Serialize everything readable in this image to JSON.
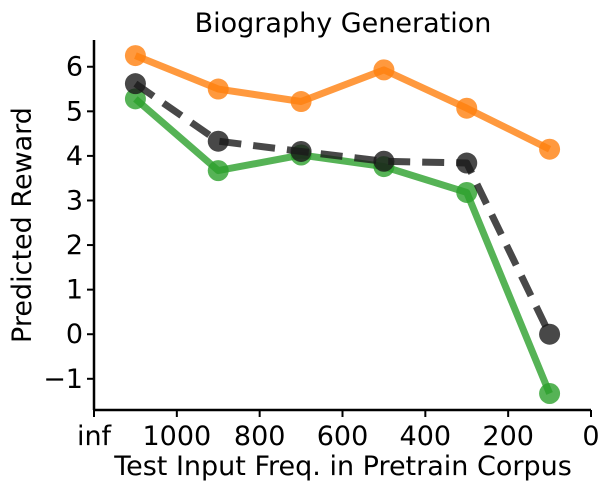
{
  "chart_data": {
    "type": "line",
    "title": "Biography Generation",
    "xlabel": "Test Input Freq. in Pretrain Corpus",
    "ylabel": "Predicted Reward",
    "xlim": [
      1200,
      0
    ],
    "ylim": [
      -1.7,
      6.6
    ],
    "x_ticks": [
      {
        "value": 1200,
        "label": "inf"
      },
      {
        "value": 1000,
        "label": "1000"
      },
      {
        "value": 800,
        "label": "800"
      },
      {
        "value": 600,
        "label": "600"
      },
      {
        "value": 400,
        "label": "400"
      },
      {
        "value": 200,
        "label": "200"
      },
      {
        "value": 0,
        "label": "0"
      }
    ],
    "y_ticks": [
      {
        "value": 6,
        "label": "6"
      },
      {
        "value": 5,
        "label": "5"
      },
      {
        "value": 4,
        "label": "4"
      },
      {
        "value": 3,
        "label": "3"
      },
      {
        "value": 2,
        "label": "2"
      },
      {
        "value": 1,
        "label": "1"
      },
      {
        "value": 0,
        "label": "0"
      },
      {
        "value": -1,
        "label": "−1"
      }
    ],
    "x": [
      1100,
      900,
      700,
      500,
      300,
      100
    ],
    "series": [
      {
        "color": "#ff7f0e",
        "style": "solid",
        "values": [
          6.25,
          5.5,
          5.22,
          5.93,
          5.07,
          4.15
        ]
      },
      {
        "color": "#2ca02c",
        "style": "solid",
        "values": [
          5.28,
          3.67,
          4.02,
          3.76,
          3.18,
          -1.33
        ]
      },
      {
        "color": "#1a1a1a",
        "style": "dashed",
        "values": [
          5.62,
          4.33,
          4.1,
          3.88,
          3.84,
          0.0
        ]
      }
    ],
    "grid": false,
    "legend": "none"
  }
}
